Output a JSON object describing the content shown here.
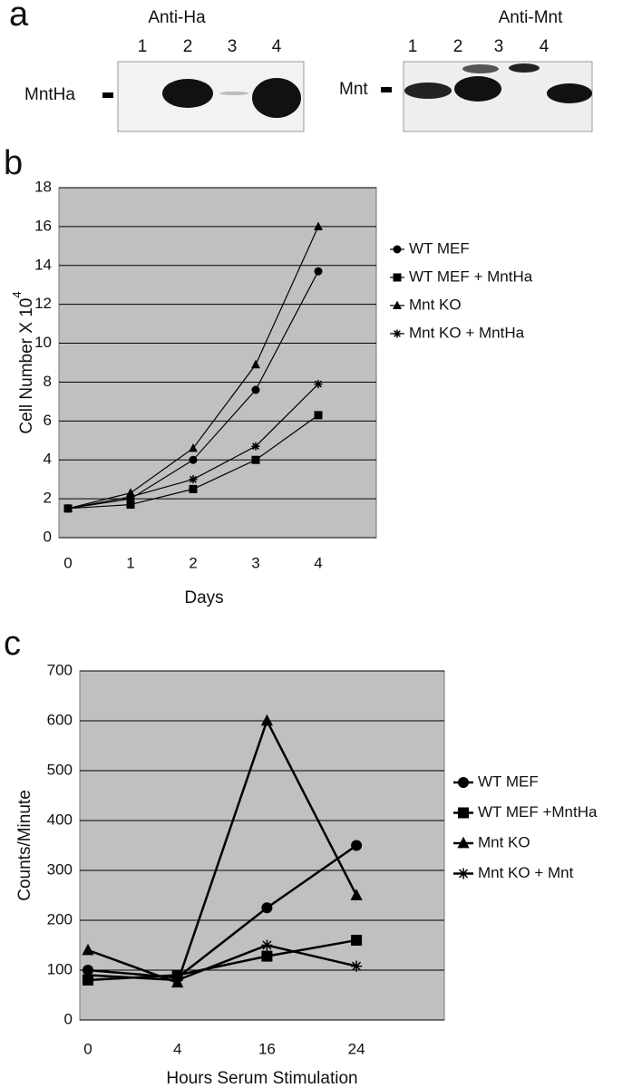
{
  "figure": {
    "panel_labels": [
      "a",
      "b",
      "c"
    ],
    "blots": [
      {
        "title": "Anti-Ha",
        "lanes": [
          "1",
          "2",
          "3",
          "4"
        ],
        "marker": "MntHa"
      },
      {
        "title": "Anti-Mnt",
        "lanes": [
          "1",
          "2",
          "3",
          "4"
        ],
        "marker": "Mnt"
      }
    ]
  },
  "chart_data": [
    {
      "type": "line",
      "xlabel": "Days",
      "ylabel": "Cell Number X 10",
      "ylabel_superscript": "4",
      "categories": [
        "0",
        "1",
        "2",
        "3",
        "4"
      ],
      "ylim": [
        0,
        18
      ],
      "yticks": [
        0,
        2,
        4,
        6,
        8,
        10,
        12,
        14,
        16,
        18
      ],
      "grid": true,
      "background": "#c0c0c0",
      "line_width": 1.2,
      "series": [
        {
          "name": "WT MEF",
          "color": "#000000",
          "marker": "circle",
          "values": [
            1.5,
            2.0,
            4.0,
            7.6,
            13.7
          ]
        },
        {
          "name": "WT MEF + MntHa",
          "color": "#000000",
          "marker": "square",
          "values": [
            1.5,
            1.7,
            2.5,
            4.0,
            6.3
          ]
        },
        {
          "name": "Mnt KO",
          "color": "#000000",
          "marker": "triangle",
          "values": [
            1.5,
            2.3,
            4.6,
            8.9,
            16.0
          ]
        },
        {
          "name": "Mnt KO + MntHa",
          "color": "#000000",
          "marker": "star",
          "values": [
            1.5,
            2.1,
            3.0,
            4.7,
            7.9
          ]
        }
      ]
    },
    {
      "type": "line",
      "xlabel": "Hours Serum Stimulation",
      "ylabel": "Counts/Minute",
      "categories": [
        "0",
        "4",
        "16",
        "24"
      ],
      "ylim": [
        0,
        700
      ],
      "yticks": [
        0,
        100,
        200,
        300,
        400,
        500,
        600,
        700
      ],
      "grid": true,
      "background": "#c0c0c0",
      "line_width": 2.5,
      "series": [
        {
          "name": "WT MEF",
          "color": "#000000",
          "marker": "circle",
          "values": [
            100,
            85,
            225,
            350
          ]
        },
        {
          "name": "WT MEF +MntHa",
          "color": "#000000",
          "marker": "square",
          "values": [
            80,
            90,
            128,
            160
          ]
        },
        {
          "name": "Mnt KO",
          "color": "#000000",
          "marker": "triangle",
          "values": [
            140,
            75,
            600,
            250
          ]
        },
        {
          "name": "Mnt KO + Mnt",
          "color": "#000000",
          "marker": "star",
          "values": [
            90,
            80,
            150,
            108
          ]
        }
      ]
    }
  ]
}
